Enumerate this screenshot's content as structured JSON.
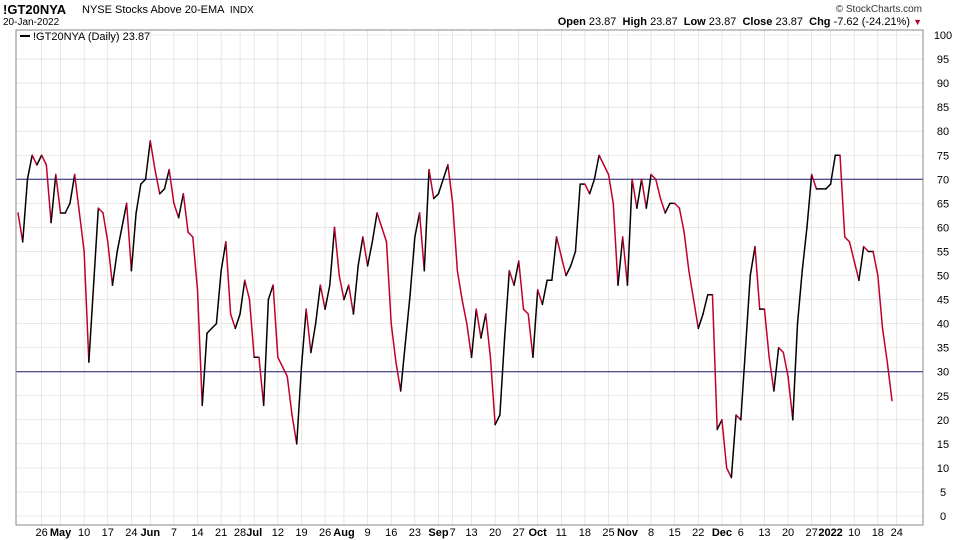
{
  "header": {
    "symbol": "!GT20NYA",
    "name": "NYSE Stocks Above 20-EMA",
    "exchange": "INDX",
    "date": "20-Jan-2022",
    "copyright": "© StockCharts.com",
    "open_label": "Open",
    "open": "23.87",
    "high_label": "High",
    "high": "23.87",
    "low_label": "Low",
    "low": "23.87",
    "close_label": "Close",
    "close": "23.87",
    "chg_label": "Chg",
    "chg": "-7.62 (-24.21%)"
  },
  "legend": {
    "label": "!GT20NYA (Daily) 23.87"
  },
  "colors": {
    "up": "#000000",
    "down": "#c0002b",
    "ref_line": "#1a1a6e",
    "grid": "#d9d9d9"
  },
  "chart_data": {
    "type": "line",
    "series_name": "!GT20NYA (Daily)",
    "ylim": [
      0,
      100
    ],
    "y_ticks": [
      0,
      5,
      10,
      15,
      20,
      25,
      30,
      35,
      40,
      45,
      50,
      55,
      60,
      65,
      70,
      75,
      80,
      85,
      90,
      95,
      100
    ],
    "reference_lines": [
      70,
      30
    ],
    "x_ticks": [
      {
        "label": "26",
        "i": 5
      },
      {
        "label": "May",
        "i": 9,
        "bold": true
      },
      {
        "label": "10",
        "i": 14
      },
      {
        "label": "17",
        "i": 19
      },
      {
        "label": "24",
        "i": 24
      },
      {
        "label": "Jun",
        "i": 28,
        "bold": true
      },
      {
        "label": "7",
        "i": 33
      },
      {
        "label": "14",
        "i": 38
      },
      {
        "label": "21",
        "i": 43
      },
      {
        "label": "28",
        "i": 47
      },
      {
        "label": "Jul",
        "i": 50,
        "bold": true
      },
      {
        "label": "12",
        "i": 55
      },
      {
        "label": "19",
        "i": 60
      },
      {
        "label": "26",
        "i": 65
      },
      {
        "label": "Aug",
        "i": 69,
        "bold": true
      },
      {
        "label": "9",
        "i": 74
      },
      {
        "label": "16",
        "i": 79
      },
      {
        "label": "23",
        "i": 84
      },
      {
        "label": "Sep",
        "i": 89,
        "bold": true
      },
      {
        "label": "7",
        "i": 92
      },
      {
        "label": "13",
        "i": 96
      },
      {
        "label": "20",
        "i": 101
      },
      {
        "label": "27",
        "i": 106
      },
      {
        "label": "Oct",
        "i": 110,
        "bold": true
      },
      {
        "label": "11",
        "i": 115
      },
      {
        "label": "18",
        "i": 120
      },
      {
        "label": "25",
        "i": 125
      },
      {
        "label": "Nov",
        "i": 129,
        "bold": true
      },
      {
        "label": "8",
        "i": 134
      },
      {
        "label": "15",
        "i": 139
      },
      {
        "label": "22",
        "i": 144
      },
      {
        "label": "Dec",
        "i": 149,
        "bold": true
      },
      {
        "label": "6",
        "i": 153
      },
      {
        "label": "13",
        "i": 158
      },
      {
        "label": "20",
        "i": 163
      },
      {
        "label": "27",
        "i": 168
      },
      {
        "label": "2022",
        "i": 172,
        "bold": true
      },
      {
        "label": "10",
        "i": 177
      },
      {
        "label": "18",
        "i": 182
      },
      {
        "label": "24",
        "i": 186
      }
    ],
    "values": [
      63,
      57,
      70,
      75,
      73,
      75,
      73,
      61,
      71,
      63,
      63,
      65,
      71,
      63,
      55,
      32,
      48,
      64,
      63,
      57,
      48,
      55,
      60,
      65,
      51,
      63,
      69,
      70,
      78,
      72,
      67,
      68,
      72,
      65,
      62,
      67,
      59,
      58,
      47,
      23,
      38,
      39,
      40,
      51,
      57,
      42,
      39,
      42,
      49,
      45,
      33,
      33,
      23,
      45,
      48,
      33,
      31,
      29,
      21,
      15,
      31,
      43,
      34,
      40,
      48,
      43,
      48,
      60,
      50,
      45,
      48,
      42,
      52,
      58,
      52,
      57,
      63,
      60,
      57,
      40,
      32,
      26,
      36,
      46,
      58,
      63,
      51,
      72,
      66,
      67,
      70,
      73,
      65,
      51,
      45,
      40,
      33,
      43,
      37,
      42,
      33,
      19,
      21,
      37,
      51,
      48,
      53,
      43,
      42,
      33,
      47,
      44,
      49,
      49,
      58,
      54,
      50,
      52,
      55,
      69,
      69,
      67,
      70,
      75,
      73,
      71,
      65,
      48,
      58,
      48,
      70,
      64,
      70,
      64,
      71,
      70,
      66,
      63,
      65,
      65,
      64,
      59,
      51,
      45,
      39,
      42,
      46,
      46,
      18,
      20,
      10,
      8,
      21,
      20,
      35,
      50,
      56,
      43,
      43,
      33,
      26,
      35,
      34,
      29,
      20,
      40,
      51,
      60,
      71,
      68,
      68,
      68,
      69,
      75,
      75,
      58,
      57,
      53,
      49,
      56,
      55,
      55,
      50,
      39,
      32,
      24
    ],
    "last_value": 23.87
  }
}
